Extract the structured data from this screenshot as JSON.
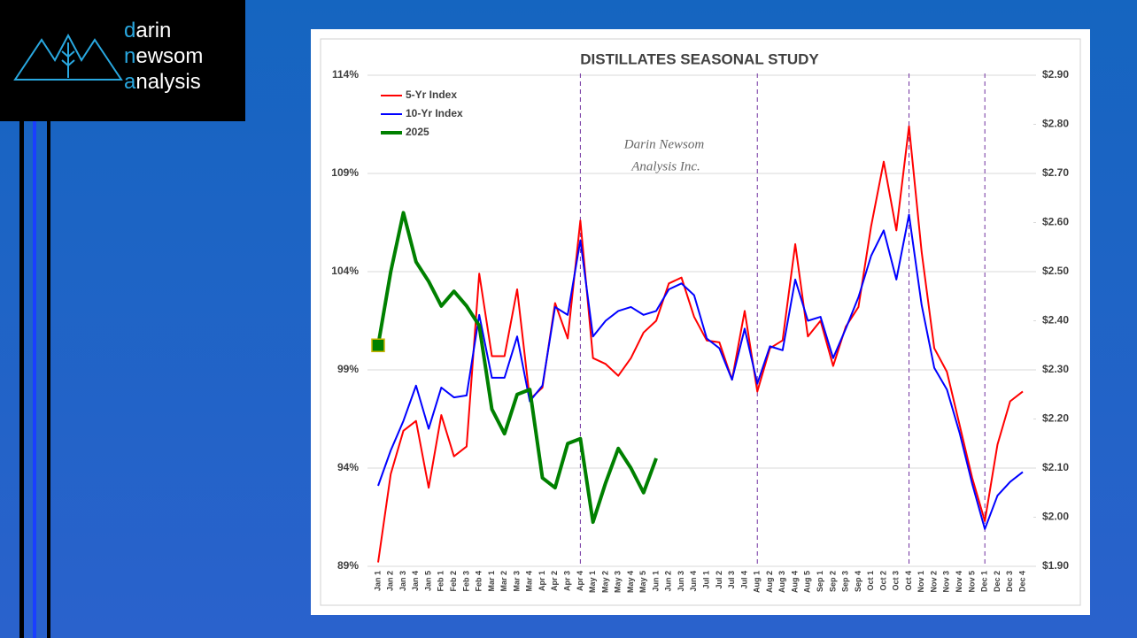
{
  "logo": {
    "lines": [
      {
        "accent": "d",
        "rest": "arin"
      },
      {
        "accent": "n",
        "rest": "ewsom"
      },
      {
        "accent": "a",
        "rest": "nalysis"
      }
    ]
  },
  "chart_data": {
    "type": "line",
    "title": "DISTILLATES SEASONAL STUDY",
    "watermark": [
      "Darin Newsom",
      "Analysis Inc."
    ],
    "categories": [
      "Jan 1",
      "Jan 2",
      "Jan 3",
      "Jan 4",
      "Jan 5",
      "Feb 1",
      "Feb 2",
      "Feb 3",
      "Feb 4",
      "Mar 1",
      "Mar 2",
      "Mar 3",
      "Mar 4",
      "Apr 1",
      "Apr 2",
      "Apr 3",
      "Apr 4",
      "May 1",
      "May 2",
      "May 3",
      "May 4",
      "May 5",
      "Jun 1",
      "Jun 2",
      "Jun 3",
      "Jun 4",
      "Jul 1",
      "Jul 2",
      "Jul 3",
      "Jul 4",
      "Aug 1",
      "Aug 2",
      "Aug 3",
      "Aug 4",
      "Aug 5",
      "Sep 1",
      "Sep 2",
      "Sep 3",
      "Sep 4",
      "Oct 1",
      "Oct 2",
      "Oct 3",
      "Oct 4",
      "Nov 1",
      "Nov 2",
      "Nov 3",
      "Nov 4",
      "Nov 5",
      "Dec 1",
      "Dec 2",
      "Dec 3",
      "Dec 4"
    ],
    "series": [
      {
        "name": "5-Yr Index",
        "color": "#ff0000",
        "width": 2,
        "values": [
          89.2,
          93.7,
          95.9,
          96.4,
          93.0,
          96.7,
          94.6,
          95.1,
          103.9,
          99.7,
          99.7,
          103.1,
          97.5,
          98.1,
          102.4,
          100.6,
          106.6,
          99.6,
          99.3,
          98.7,
          99.6,
          100.9,
          101.5,
          103.4,
          103.7,
          101.7,
          100.5,
          100.4,
          98.5,
          102.0,
          97.9,
          100.1,
          100.5,
          105.4,
          100.7,
          101.5,
          99.2,
          101.2,
          102.2,
          106.3,
          109.6,
          106.1,
          111.4,
          105.0,
          100.1,
          98.9,
          96.2,
          93.5,
          91.3,
          95.2,
          97.4,
          97.9
        ]
      },
      {
        "name": "10-Yr Index",
        "color": "#0000ff",
        "width": 2,
        "values": [
          93.1,
          94.9,
          96.4,
          98.2,
          96.0,
          98.1,
          97.6,
          97.7,
          101.8,
          98.6,
          98.6,
          100.7,
          97.4,
          98.2,
          102.2,
          101.8,
          105.6,
          100.7,
          101.5,
          102.0,
          102.2,
          101.8,
          102.0,
          103.1,
          103.4,
          102.8,
          100.6,
          100.1,
          98.5,
          101.1,
          98.3,
          100.2,
          100.0,
          103.6,
          101.5,
          101.7,
          99.6,
          101.1,
          102.7,
          104.8,
          106.1,
          103.6,
          106.9,
          102.3,
          99.1,
          98.0,
          95.8,
          93.2,
          90.9,
          92.6,
          93.3,
          93.8
        ]
      },
      {
        "name": "2025",
        "color": "#008000",
        "width": 4,
        "axis": "y2",
        "start_marker": "square",
        "values": [
          2.35,
          2.5,
          2.62,
          2.52,
          2.48,
          2.43,
          2.46,
          2.43,
          2.39,
          2.22,
          2.17,
          2.25,
          2.26,
          2.08,
          2.06,
          2.15,
          2.16,
          1.99,
          2.07,
          2.14,
          2.1,
          2.05,
          2.12,
          null,
          null,
          null,
          null,
          null,
          null,
          null,
          null,
          null,
          null,
          null,
          null,
          null,
          null,
          null,
          null,
          null,
          null,
          null,
          null,
          null,
          null,
          null,
          null,
          null,
          null,
          null,
          null,
          null
        ]
      }
    ],
    "vlines": [
      "Apr 4",
      "Aug 1",
      "Oct 4",
      "Dec 1"
    ],
    "ylim": [
      89,
      114
    ],
    "yticks": [
      {
        "value": 89,
        "label": "89%"
      },
      {
        "value": 94,
        "label": "94%"
      },
      {
        "value": 99,
        "label": "99%"
      },
      {
        "value": 104,
        "label": "104%"
      },
      {
        "value": 109,
        "label": "109%"
      },
      {
        "value": 114,
        "label": "114%"
      }
    ],
    "y2lim": [
      1.9,
      2.9
    ],
    "y2ticks": [
      {
        "value": 1.9,
        "label": "$1.90"
      },
      {
        "value": 2.0,
        "label": "$2.00"
      },
      {
        "value": 2.1,
        "label": "$2.10"
      },
      {
        "value": 2.2,
        "label": "$2.20"
      },
      {
        "value": 2.3,
        "label": "$2.30"
      },
      {
        "value": 2.4,
        "label": "$2.40"
      },
      {
        "value": 2.5,
        "label": "$2.50"
      },
      {
        "value": 2.6,
        "label": "$2.60"
      },
      {
        "value": 2.7,
        "label": "$2.70"
      },
      {
        "value": 2.8,
        "label": "$2.80"
      },
      {
        "value": 2.9,
        "label": "$2.90"
      }
    ],
    "grid": true,
    "legend": "top-left"
  }
}
